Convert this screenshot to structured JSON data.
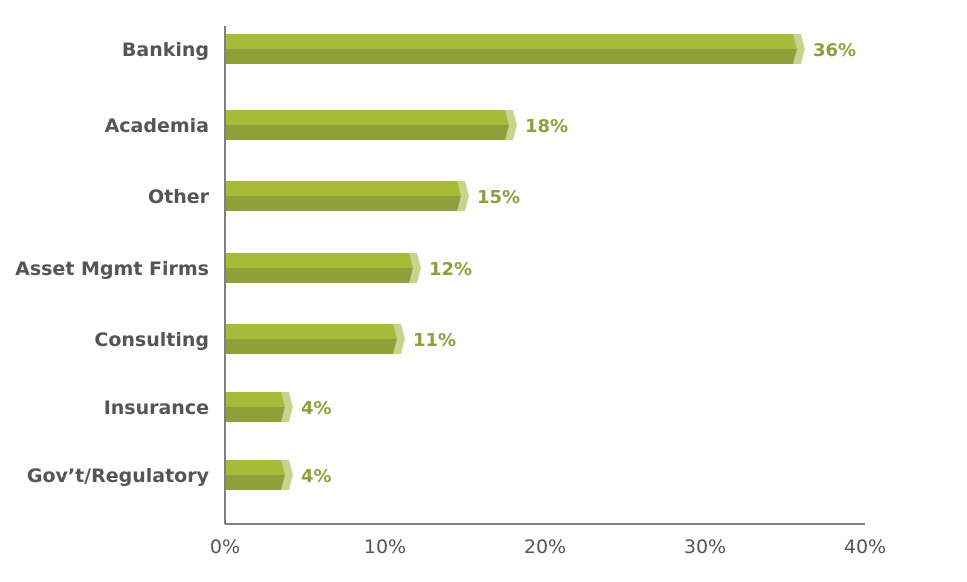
{
  "chart_data": {
    "type": "bar",
    "orientation": "horizontal",
    "categories": [
      "Banking",
      "Academia",
      "Other",
      "Asset Mgmt Firms",
      "Consulting",
      "Insurance",
      "Gov’t/Regulatory"
    ],
    "values": [
      36,
      18,
      15,
      12,
      11,
      4,
      4
    ],
    "value_labels": [
      "36%",
      "18%",
      "15%",
      "12%",
      "11%",
      "4%",
      "4%"
    ],
    "x_ticks": [
      "0%",
      "10%",
      "20%",
      "30%",
      "40%"
    ],
    "xlim": [
      0,
      40
    ],
    "grid": false,
    "legend": "none"
  },
  "colors": {
    "bar_top": "#A8BA3A",
    "bar_bottom": "#8FA03A",
    "bar_tip": "#C8D48E",
    "value_label": "#8FA03A",
    "category_label": "#555555",
    "axis": "#555555"
  }
}
